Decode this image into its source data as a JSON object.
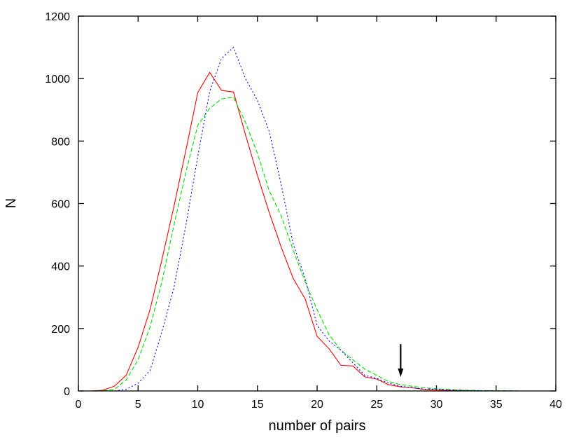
{
  "chart_data": {
    "type": "line",
    "title": "",
    "xlabel": "number of pairs",
    "ylabel": "N",
    "xlim": [
      0,
      40
    ],
    "ylim": [
      0,
      1200
    ],
    "xticks": [
      0,
      5,
      10,
      15,
      20,
      25,
      30,
      35,
      40
    ],
    "yticks": [
      0,
      200,
      400,
      600,
      800,
      1000,
      1200
    ],
    "grid": false,
    "legend": "none",
    "x": [
      1,
      2,
      3,
      4,
      5,
      6,
      7,
      8,
      9,
      10,
      11,
      12,
      13,
      14,
      15,
      16,
      17,
      18,
      19,
      20,
      21,
      22,
      23,
      24,
      25,
      26,
      27,
      28,
      29,
      30,
      31,
      32,
      33,
      34,
      35,
      36,
      37,
      38,
      39,
      40
    ],
    "series": [
      {
        "color": "#ff0000",
        "style": "solid",
        "values": [
          0,
          2,
          15,
          50,
          140,
          260,
          420,
          590,
          770,
          955,
          1020,
          962,
          957,
          820,
          690,
          570,
          460,
          360,
          295,
          175,
          135,
          82,
          80,
          45,
          38,
          20,
          13,
          10,
          5,
          3,
          2,
          1,
          1,
          0,
          0,
          0,
          0,
          0,
          0,
          0
        ]
      },
      {
        "color": "#00dd00",
        "style": "dashed",
        "values": [
          0,
          1,
          5,
          35,
          100,
          205,
          350,
          530,
          700,
          850,
          905,
          935,
          940,
          860,
          760,
          640,
          560,
          450,
          350,
          260,
          180,
          130,
          100,
          70,
          50,
          30,
          20,
          15,
          10,
          7,
          5,
          3,
          2,
          1,
          1,
          1,
          0,
          0,
          0,
          0
        ]
      },
      {
        "color": "#0000ff",
        "style": "dotted",
        "values": [
          0,
          0,
          0,
          5,
          25,
          65,
          190,
          330,
          530,
          750,
          960,
          1065,
          1100,
          1000,
          930,
          830,
          660,
          470,
          360,
          210,
          160,
          130,
          90,
          50,
          40,
          25,
          15,
          10,
          6,
          6,
          3,
          2,
          1,
          1,
          0,
          0,
          0,
          0,
          0,
          0
        ]
      }
    ],
    "annotations": [
      {
        "type": "arrow",
        "x": 27,
        "y_from": 150,
        "y_to": 45
      }
    ]
  }
}
